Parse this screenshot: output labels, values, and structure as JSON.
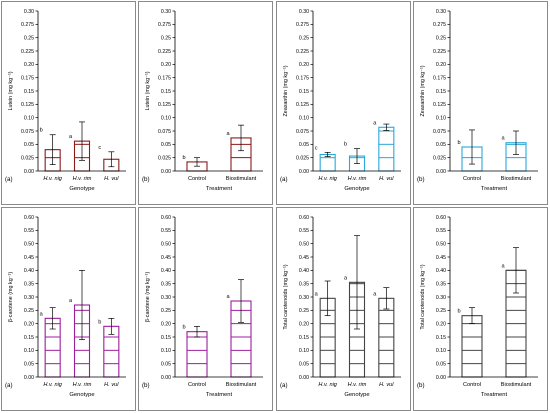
{
  "chart_data": [
    {
      "type": "bar",
      "panel": "(a)",
      "ylabel": "Lutein (mg kg⁻¹)",
      "xlabel": "Genotype",
      "categories": [
        "H.v. nig",
        "H.v. rim",
        "H. vul"
      ],
      "italic_categories": true,
      "values": [
        0.04,
        0.056,
        0.022
      ],
      "errors": [
        0.028,
        0.036,
        0.014
      ],
      "letters": [
        "b",
        "a",
        "c"
      ],
      "ylim": [
        0,
        0.3
      ],
      "yticks": [
        "0.00",
        "0.025",
        "0.05",
        "0.075",
        "0.10",
        "0.125",
        "0.15",
        "0.175",
        "0.20",
        "0.225",
        "0.25",
        "0.275",
        "0.30"
      ],
      "color": "#8b1a1a"
    },
    {
      "type": "bar",
      "panel": "(b)",
      "ylabel": "Lutein (mg kg⁻¹)",
      "xlabel": "Treatment",
      "categories": [
        "Control",
        "Biostimulant"
      ],
      "italic_categories": false,
      "values": [
        0.017,
        0.062
      ],
      "errors": [
        0.008,
        0.024
      ],
      "letters": [
        "b",
        "a"
      ],
      "ylim": [
        0,
        0.3
      ],
      "yticks": [
        "0.00",
        "0.025",
        "0.05",
        "0.075",
        "0.10",
        "0.125",
        "0.15",
        "0.175",
        "0.20",
        "0.225",
        "0.25",
        "0.275",
        "0.30"
      ],
      "color": "#8b1a1a"
    },
    {
      "type": "bar",
      "panel": "(a)",
      "ylabel": "Zeaxanthin (mg kg⁻¹)",
      "xlabel": "Genotype",
      "categories": [
        "H.v. nig",
        "H.v. rim",
        "H. vul"
      ],
      "italic_categories": true,
      "values": [
        0.031,
        0.028,
        0.082
      ],
      "errors": [
        0.004,
        0.014,
        0.006
      ],
      "letters": [
        "c",
        "b",
        "a"
      ],
      "ylim": [
        0,
        0.3
      ],
      "yticks": [
        "0.00",
        "0.025",
        "0.05",
        "0.075",
        "0.10",
        "0.125",
        "0.15",
        "0.175",
        "0.20",
        "0.225",
        "0.25",
        "0.275",
        "0.30"
      ],
      "color": "#2aa8d8"
    },
    {
      "type": "bar",
      "panel": "(b)",
      "ylabel": "Zeaxanthin (mg kg⁻¹)",
      "xlabel": "Treatment",
      "categories": [
        "Control",
        "Biostimulant"
      ],
      "italic_categories": false,
      "values": [
        0.045,
        0.053
      ],
      "errors": [
        0.032,
        0.022
      ],
      "letters": [
        "b",
        "a"
      ],
      "ylim": [
        0,
        0.3
      ],
      "yticks": [
        "0.00",
        "0.025",
        "0.05",
        "0.075",
        "0.10",
        "0.125",
        "0.15",
        "0.175",
        "0.20",
        "0.225",
        "0.25",
        "0.275",
        "0.30"
      ],
      "color": "#2aa8d8"
    },
    {
      "type": "bar",
      "panel": "(a)",
      "ylabel": "β-carotene (mg kg⁻¹)",
      "xlabel": "Genotype",
      "categories": [
        "H.v. nig",
        "H.v. rim",
        "H. vul"
      ],
      "italic_categories": true,
      "values": [
        0.22,
        0.27,
        0.19
      ],
      "errors": [
        0.04,
        0.13,
        0.03
      ],
      "letters": [
        "a",
        "a",
        "b"
      ],
      "ylim": [
        0,
        0.6
      ],
      "yticks": [
        "0.00",
        "0.05",
        "0.10",
        "0.15",
        "0.20",
        "0.25",
        "0.30",
        "0.35",
        "0.40",
        "0.45",
        "0.50",
        "0.55",
        "0.60"
      ],
      "color": "#9b1f9b"
    },
    {
      "type": "bar",
      "panel": "(b)",
      "ylabel": "β-carotene (mg kg⁻¹)",
      "xlabel": "Treatment",
      "categories": [
        "Control",
        "Biostimulant"
      ],
      "italic_categories": false,
      "values": [
        0.17,
        0.285
      ],
      "errors": [
        0.02,
        0.08
      ],
      "letters": [
        "b",
        "a"
      ],
      "ylim": [
        0,
        0.6
      ],
      "yticks": [
        "0.00",
        "0.05",
        "0.10",
        "0.15",
        "0.20",
        "0.25",
        "0.30",
        "0.35",
        "0.40",
        "0.45",
        "0.50",
        "0.55",
        "0.60"
      ],
      "color": "#9b1f9b"
    },
    {
      "type": "bar",
      "panel": "(a)",
      "ylabel": "Total carotenoids (mg kg⁻¹)",
      "xlabel": "Genotype",
      "categories": [
        "H.v. nig",
        "H.v. rim",
        "H. vul"
      ],
      "italic_categories": true,
      "values": [
        0.295,
        0.355,
        0.295
      ],
      "errors": [
        0.065,
        0.175,
        0.04
      ],
      "letters": [
        "a",
        "a",
        "a"
      ],
      "ylim": [
        0,
        0.6
      ],
      "yticks": [
        "0.00",
        "0.05",
        "0.10",
        "0.15",
        "0.20",
        "0.25",
        "0.30",
        "0.35",
        "0.40",
        "0.45",
        "0.50",
        "0.55",
        "0.60"
      ],
      "color": "#444444"
    },
    {
      "type": "bar",
      "panel": "(b)",
      "ylabel": "Total carotenoids (mg kg⁻¹)",
      "xlabel": "Treatment",
      "categories": [
        "Control",
        "Biostimulant"
      ],
      "italic_categories": false,
      "values": [
        0.23,
        0.4
      ],
      "errors": [
        0.03,
        0.085
      ],
      "letters": [
        "b",
        "a"
      ],
      "ylim": [
        0,
        0.6
      ],
      "yticks": [
        "0.00",
        "0.05",
        "0.10",
        "0.15",
        "0.20",
        "0.25",
        "0.30",
        "0.35",
        "0.40",
        "0.45",
        "0.50",
        "0.55",
        "0.60"
      ],
      "color": "#444444"
    }
  ]
}
